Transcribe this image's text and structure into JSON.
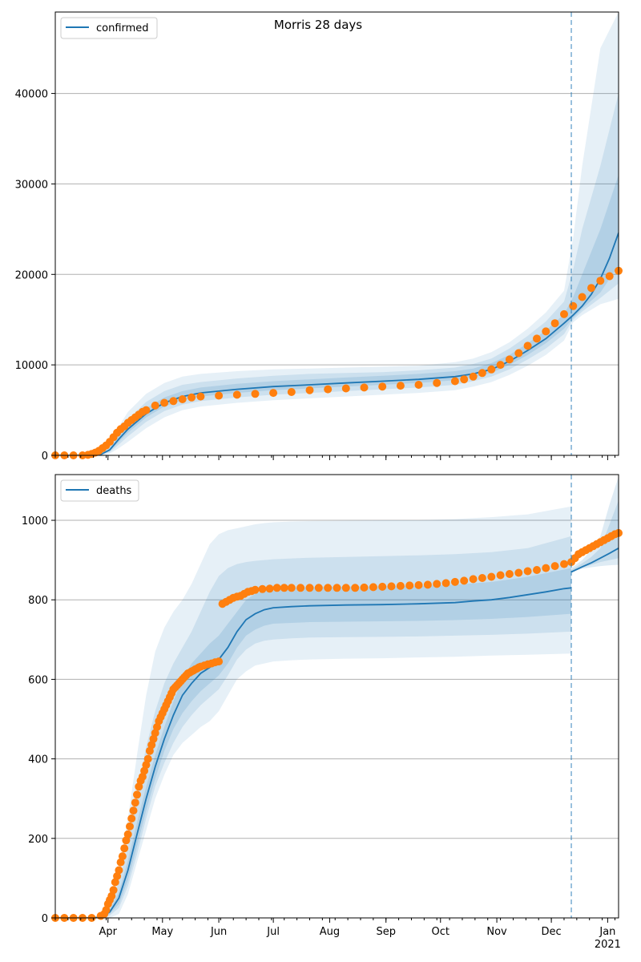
{
  "figure_title": "Morris 28 days",
  "colors": {
    "fit": "#1f77b4",
    "observed": "#ff7f0e",
    "band": "#1f77b4",
    "grid": "#b0b0b0",
    "forecast_line": "#1f77b4"
  },
  "chart_data": [
    {
      "type": "line",
      "legend": "confirmed",
      "legend_position": "top-left",
      "ylim": [
        0,
        49000
      ],
      "yticks": [
        0,
        10000,
        20000,
        30000,
        40000
      ],
      "x_range_days": [
        0,
        310
      ],
      "forecast_day": 284,
      "grid": "horizontal",
      "fit": {
        "x": [
          0,
          20,
          25,
          30,
          35,
          40,
          50,
          60,
          70,
          80,
          100,
          120,
          140,
          160,
          180,
          200,
          220,
          230,
          240,
          250,
          260,
          270,
          280,
          285,
          290,
          295,
          300,
          305,
          310
        ],
        "y": [
          0,
          0,
          100,
          600,
          1800,
          2900,
          4600,
          5800,
          6500,
          6900,
          7300,
          7600,
          7800,
          8000,
          8200,
          8400,
          8700,
          9000,
          9500,
          10400,
          11600,
          12900,
          14600,
          15500,
          16500,
          17800,
          19500,
          21800,
          24600
        ]
      },
      "bands": [
        {
          "x": [
            0,
            20,
            25,
            30,
            35,
            40,
            50,
            60,
            70,
            80,
            100,
            120,
            140,
            160,
            180,
            200,
            220,
            230,
            240,
            250,
            260,
            270,
            280,
            285,
            290,
            300,
            310
          ],
          "lo": [
            0,
            0,
            0,
            200,
            800,
            1500,
            3000,
            4200,
            5000,
            5400,
            5800,
            6100,
            6300,
            6500,
            6700,
            6900,
            7200,
            7600,
            8100,
            8900,
            9900,
            11100,
            12700,
            14700,
            15500,
            16700,
            17300
          ],
          "hi": [
            0,
            0,
            300,
            1300,
            3200,
            4800,
            6800,
            8000,
            8700,
            9000,
            9300,
            9500,
            9600,
            9700,
            9800,
            9900,
            10300,
            10700,
            11400,
            12500,
            14000,
            15800,
            18200,
            24000,
            32000,
            45000,
            55000
          ]
        },
        {
          "x": [
            0,
            20,
            25,
            30,
            35,
            40,
            50,
            60,
            70,
            80,
            100,
            120,
            140,
            160,
            180,
            200,
            220,
            230,
            240,
            250,
            260,
            270,
            280,
            285,
            290,
            300,
            310
          ],
          "lo": [
            0,
            0,
            50,
            350,
            1200,
            2100,
            3700,
            4900,
            5600,
            6000,
            6400,
            6700,
            6900,
            7100,
            7300,
            7500,
            7800,
            8200,
            8700,
            9500,
            10600,
            11800,
            13400,
            15000,
            15900,
            17400,
            19000
          ],
          "hi": [
            0,
            0,
            200,
            1000,
            2600,
            4000,
            5900,
            7100,
            7800,
            8100,
            8500,
            8800,
            9000,
            9100,
            9200,
            9400,
            9700,
            10100,
            10700,
            11800,
            13200,
            14800,
            17000,
            20500,
            25000,
            32000,
            40000
          ]
        },
        {
          "x": [
            0,
            20,
            25,
            30,
            35,
            40,
            50,
            60,
            70,
            80,
            100,
            120,
            140,
            160,
            180,
            200,
            220,
            230,
            240,
            250,
            260,
            270,
            280,
            285,
            290,
            300,
            310
          ],
          "lo": [
            0,
            0,
            80,
            450,
            1500,
            2500,
            4200,
            5400,
            6100,
            6500,
            6900,
            7200,
            7400,
            7600,
            7800,
            8000,
            8300,
            8600,
            9100,
            10000,
            11100,
            12400,
            14000,
            15200,
            16200,
            18000,
            21000
          ],
          "hi": [
            0,
            0,
            150,
            800,
            2200,
            3400,
            5200,
            6400,
            7100,
            7500,
            7900,
            8200,
            8400,
            8600,
            8800,
            9000,
            9300,
            9600,
            10200,
            11100,
            12400,
            13800,
            15600,
            17500,
            20000,
            25000,
            31000
          ]
        }
      ],
      "observed": {
        "x": [
          0,
          5,
          10,
          15,
          18,
          20,
          22,
          24,
          26,
          28,
          30,
          32,
          34,
          36,
          38,
          40,
          42,
          44,
          46,
          48,
          50,
          55,
          60,
          65,
          70,
          75,
          80,
          90,
          100,
          110,
          120,
          130,
          140,
          150,
          160,
          170,
          180,
          190,
          200,
          210,
          220,
          225,
          230,
          235,
          240,
          245,
          250,
          255,
          260,
          265,
          270,
          275,
          280,
          285,
          290,
          295,
          300,
          305,
          310
        ],
        "y": [
          0,
          0,
          0,
          0,
          50,
          150,
          300,
          500,
          800,
          1100,
          1500,
          2000,
          2500,
          2900,
          3200,
          3600,
          3900,
          4200,
          4500,
          4800,
          5000,
          5500,
          5800,
          6000,
          6200,
          6400,
          6500,
          6600,
          6700,
          6800,
          6900,
          7000,
          7200,
          7300,
          7400,
          7500,
          7600,
          7700,
          7800,
          8000,
          8200,
          8400,
          8700,
          9100,
          9500,
          10000,
          10600,
          11300,
          12100,
          12900,
          13700,
          14600,
          15600,
          16500,
          17500,
          18500,
          19300,
          19800,
          20400
        ]
      }
    },
    {
      "type": "line",
      "legend": "deaths",
      "legend_position": "top-left",
      "ylim": [
        0,
        1115
      ],
      "yticks": [
        0,
        200,
        400,
        600,
        800,
        1000
      ],
      "x_range_days": [
        0,
        310
      ],
      "forecast_day": 284,
      "grid": "horizontal",
      "fit": {
        "x": [
          0,
          20,
          25,
          30,
          35,
          40,
          45,
          50,
          55,
          60,
          65,
          70,
          75,
          80,
          85,
          90,
          95,
          100,
          105,
          110,
          115,
          120,
          130,
          140,
          160,
          180,
          200,
          220,
          230,
          240,
          250,
          260,
          270,
          280,
          284
        ],
        "y": [
          0,
          0,
          2,
          15,
          50,
          120,
          210,
          300,
          380,
          450,
          510,
          560,
          590,
          615,
          630,
          650,
          680,
          720,
          750,
          765,
          775,
          780,
          783,
          785,
          787,
          788,
          790,
          793,
          797,
          800,
          806,
          813,
          820,
          828,
          830
        ]
      },
      "fit_forecast": {
        "x": [
          284,
          290,
          295,
          300,
          305,
          310
        ],
        "y": [
          870,
          883,
          893,
          905,
          917,
          930
        ]
      },
      "bands": [
        {
          "x": [
            0,
            20,
            25,
            30,
            35,
            40,
            45,
            50,
            55,
            60,
            65,
            70,
            75,
            80,
            85,
            90,
            95,
            100,
            105,
            110,
            115,
            120,
            130,
            140,
            160,
            180,
            200,
            220,
            240,
            260,
            284
          ],
          "lo": [
            0,
            0,
            0,
            0,
            10,
            60,
            140,
            220,
            300,
            360,
            410,
            440,
            460,
            480,
            495,
            520,
            560,
            600,
            620,
            635,
            640,
            645,
            648,
            650,
            652,
            653,
            655,
            657,
            660,
            662,
            665
          ],
          "hi": [
            0,
            0,
            10,
            40,
            130,
            250,
            410,
            560,
            670,
            730,
            770,
            800,
            840,
            890,
            940,
            965,
            975,
            980,
            985,
            990,
            993,
            995,
            997,
            998,
            999,
            1000,
            1000,
            1003,
            1008,
            1015,
            1035
          ]
        },
        {
          "x": [
            0,
            20,
            25,
            30,
            35,
            40,
            45,
            50,
            55,
            60,
            65,
            70,
            75,
            80,
            85,
            90,
            95,
            100,
            105,
            110,
            115,
            120,
            130,
            140,
            160,
            180,
            200,
            220,
            240,
            260,
            284
          ],
          "lo": [
            0,
            0,
            1,
            6,
            25,
            80,
            160,
            250,
            330,
            390,
            440,
            480,
            510,
            535,
            555,
            575,
            610,
            650,
            675,
            690,
            697,
            700,
            703,
            705,
            706,
            707,
            708,
            710,
            712,
            715,
            720
          ],
          "hi": [
            0,
            0,
            5,
            28,
            90,
            180,
            310,
            430,
            520,
            590,
            640,
            680,
            720,
            770,
            820,
            860,
            880,
            890,
            895,
            898,
            900,
            902,
            904,
            906,
            908,
            910,
            912,
            915,
            920,
            930,
            960
          ]
        },
        {
          "x": [
            0,
            20,
            25,
            30,
            35,
            40,
            45,
            50,
            55,
            60,
            65,
            70,
            75,
            80,
            85,
            90,
            95,
            100,
            105,
            110,
            115,
            120,
            130,
            140,
            160,
            180,
            200,
            220,
            240,
            260,
            284
          ],
          "lo": [
            0,
            0,
            1,
            10,
            35,
            95,
            180,
            270,
            350,
            420,
            475,
            515,
            545,
            570,
            590,
            610,
            640,
            680,
            710,
            725,
            735,
            740,
            742,
            744,
            745,
            746,
            747,
            749,
            752,
            757,
            765
          ],
          "hi": [
            0,
            0,
            3,
            20,
            65,
            145,
            240,
            330,
            410,
            480,
            545,
            600,
            640,
            665,
            690,
            710,
            740,
            770,
            800,
            815,
            823,
            828,
            830,
            832,
            833,
            834,
            835,
            838,
            845,
            858,
            880
          ]
        },
        {
          "x": [
            284,
            290,
            295,
            300,
            305,
            310
          ],
          "lo": [
            870,
            878,
            882,
            885,
            887,
            888
          ],
          "hi": [
            880,
            900,
            925,
            960,
            1040,
            1110
          ]
        },
        {
          "x": [
            284,
            290,
            295,
            300,
            305,
            310
          ],
          "lo": [
            872,
            881,
            888,
            895,
            900,
            905
          ],
          "hi": [
            875,
            892,
            908,
            930,
            990,
            1050
          ]
        }
      ],
      "observed": {
        "x": [
          0,
          5,
          10,
          15,
          20,
          25,
          27,
          28,
          29,
          30,
          31,
          32,
          33,
          34,
          35,
          36,
          37,
          38,
          39,
          40,
          41,
          42,
          43,
          44,
          45,
          46,
          47,
          48,
          49,
          50,
          51,
          52,
          53,
          54,
          55,
          56,
          57,
          58,
          59,
          60,
          61,
          62,
          63,
          64,
          65,
          66,
          67,
          68,
          69,
          70,
          71,
          72,
          73,
          74,
          75,
          76,
          77,
          78,
          79,
          80,
          82,
          84,
          86,
          88,
          90,
          92,
          94,
          96,
          98,
          100,
          102,
          104,
          106,
          108,
          110,
          114,
          118,
          122,
          126,
          130,
          135,
          140,
          145,
          150,
          155,
          160,
          165,
          170,
          175,
          180,
          185,
          190,
          195,
          200,
          205,
          210,
          215,
          220,
          225,
          230,
          235,
          240,
          245,
          250,
          255,
          260,
          265,
          270,
          275,
          280,
          284,
          286,
          288,
          290,
          292,
          294,
          296,
          298,
          300,
          302,
          304,
          306,
          308,
          310
        ],
        "y": [
          0,
          0,
          0,
          0,
          0,
          5,
          10,
          20,
          35,
          45,
          55,
          70,
          90,
          105,
          120,
          140,
          155,
          175,
          195,
          210,
          230,
          250,
          270,
          290,
          310,
          330,
          345,
          355,
          370,
          385,
          400,
          420,
          435,
          450,
          465,
          480,
          495,
          505,
          515,
          525,
          535,
          545,
          555,
          565,
          575,
          580,
          585,
          590,
          595,
          600,
          605,
          610,
          615,
          617,
          620,
          622,
          625,
          627,
          630,
          632,
          635,
          638,
          640,
          643,
          645,
          790,
          795,
          800,
          805,
          808,
          810,
          815,
          820,
          822,
          825,
          827,
          828,
          830,
          830,
          830,
          830,
          830,
          830,
          830,
          830,
          830,
          830,
          831,
          832,
          833,
          834,
          835,
          836,
          837,
          838,
          840,
          842,
          845,
          848,
          852,
          855,
          858,
          862,
          865,
          868,
          872,
          875,
          880,
          885,
          890,
          895,
          905,
          915,
          920,
          925,
          930,
          935,
          940,
          945,
          950,
          955,
          960,
          965,
          968
        ]
      }
    }
  ],
  "x_axis": {
    "month_ticks": [
      "Apr",
      "May",
      "Jun",
      "Jul",
      "Aug",
      "Sep",
      "Oct",
      "Nov",
      "Dec",
      "Jan"
    ],
    "month_days": [
      29,
      59,
      90,
      120,
      151,
      182,
      212,
      243,
      273,
      304
    ],
    "year_label": "2021"
  }
}
